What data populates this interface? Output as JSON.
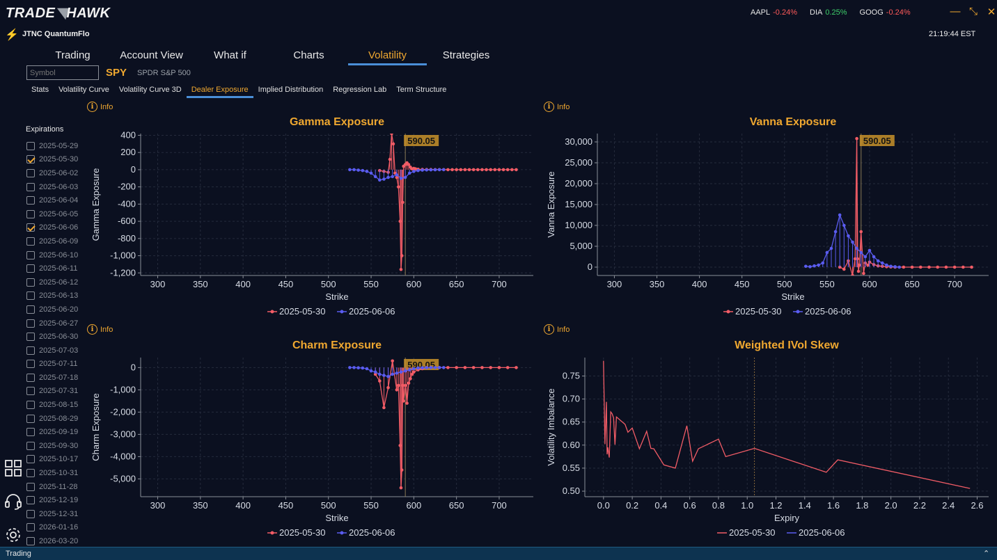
{
  "logo": {
    "left": "TRADE",
    "right": "HAWK"
  },
  "tickers": [
    {
      "symbol": "AAPL",
      "change": "-0.24%",
      "dir": "neg"
    },
    {
      "symbol": "DIA",
      "change": "0.25%",
      "dir": "pos"
    },
    {
      "symbol": "GOOG",
      "change": "-0.24%",
      "dir": "neg"
    }
  ],
  "window": {
    "minimize": "—",
    "restore": "⤡",
    "close": "✕"
  },
  "app_name": "JTNC QuantumFlo",
  "clock": "21:19:44 EST",
  "main_tabs": [
    "Trading",
    "Account View",
    "What if",
    "Charts",
    "Volatility",
    "Strategies"
  ],
  "main_tab_active": 4,
  "symbol": {
    "placeholder": "Symbol",
    "ticker": "SPY",
    "name": "SPDR S&P 500"
  },
  "sub_tabs": [
    "Stats",
    "Volatility Curve",
    "Volatility Curve 3D",
    "Dealer Exposure",
    "Implied Distribution",
    "Regression Lab",
    "Term Structure"
  ],
  "sub_tab_active": 3,
  "expirations": {
    "title": "Expirations",
    "items": [
      {
        "date": "2025-05-29",
        "checked": false
      },
      {
        "date": "2025-05-30",
        "checked": true
      },
      {
        "date": "2025-06-02",
        "checked": false
      },
      {
        "date": "2025-06-03",
        "checked": false
      },
      {
        "date": "2025-06-04",
        "checked": false
      },
      {
        "date": "2025-06-05",
        "checked": false
      },
      {
        "date": "2025-06-06",
        "checked": true
      },
      {
        "date": "2025-06-09",
        "checked": false
      },
      {
        "date": "2025-06-10",
        "checked": false
      },
      {
        "date": "2025-06-11",
        "checked": false
      },
      {
        "date": "2025-06-12",
        "checked": false
      },
      {
        "date": "2025-06-13",
        "checked": false
      },
      {
        "date": "2025-06-20",
        "checked": false
      },
      {
        "date": "2025-06-27",
        "checked": false
      },
      {
        "date": "2025-06-30",
        "checked": false
      },
      {
        "date": "2025-07-03",
        "checked": false
      },
      {
        "date": "2025-07-11",
        "checked": false
      },
      {
        "date": "2025-07-18",
        "checked": false
      },
      {
        "date": "2025-07-31",
        "checked": false
      },
      {
        "date": "2025-08-15",
        "checked": false
      },
      {
        "date": "2025-08-29",
        "checked": false
      },
      {
        "date": "2025-09-19",
        "checked": false
      },
      {
        "date": "2025-09-30",
        "checked": false
      },
      {
        "date": "2025-10-17",
        "checked": false
      },
      {
        "date": "2025-10-31",
        "checked": false
      },
      {
        "date": "2025-11-28",
        "checked": false
      },
      {
        "date": "2025-12-19",
        "checked": false
      },
      {
        "date": "2025-12-31",
        "checked": false
      },
      {
        "date": "2026-01-16",
        "checked": false
      },
      {
        "date": "2026-03-20",
        "checked": false
      }
    ]
  },
  "info_label": "Info",
  "status": {
    "text": "Trading",
    "collapse": "⌃"
  },
  "colors": {
    "accent": "#f0a830",
    "series1": "#f25c66",
    "series2": "#5a5cf0",
    "bg": "#0b1020"
  },
  "chart_data": [
    {
      "type": "line",
      "title": "Gamma Exposure",
      "xlabel": "Strike",
      "ylabel": "Gamma Exposure",
      "xlim": [
        280,
        740
      ],
      "ylim": [
        -1230,
        420
      ],
      "xticks": [
        300,
        350,
        400,
        450,
        500,
        550,
        600,
        650,
        700
      ],
      "yticks": [
        400,
        200,
        0,
        -200,
        -400,
        -600,
        -800,
        -1000,
        -1200
      ],
      "ytick_labels": [
        "400",
        "200",
        "0",
        "-200",
        "-400",
        "-600",
        "-800",
        "-1,000",
        "-1,200"
      ],
      "spot_label": "590.05",
      "spot": 590.05,
      "legend": [
        "2025-05-30",
        "2025-06-06"
      ],
      "series": [
        {
          "name": "2025-05-30",
          "color": "#f25c66",
          "marker": true,
          "x": [
            560,
            565,
            570,
            572,
            574,
            576,
            578,
            580,
            582,
            584,
            585,
            586,
            587,
            588,
            590,
            592,
            594,
            596,
            598,
            600,
            602,
            605,
            610,
            615,
            620,
            625,
            630,
            635,
            640,
            645,
            650,
            655,
            660,
            665,
            670,
            675,
            680,
            685,
            690,
            695,
            700,
            705,
            710,
            715,
            720
          ],
          "y": [
            -10,
            -20,
            -30,
            120,
            420,
            300,
            -40,
            -90,
            -200,
            -600,
            -1160,
            -1000,
            -380,
            40,
            60,
            80,
            60,
            30,
            10,
            15,
            10,
            5,
            3,
            2,
            2,
            1,
            1,
            1,
            0,
            0,
            0,
            0,
            0,
            0,
            0,
            0,
            0,
            0,
            0,
            0,
            0,
            0,
            0,
            0,
            0
          ]
        },
        {
          "name": "2025-06-06",
          "color": "#5a5cf0",
          "marker": true,
          "x": [
            525,
            530,
            535,
            540,
            545,
            550,
            555,
            560,
            565,
            570,
            575,
            580,
            585,
            590,
            595,
            600,
            605,
            610,
            615,
            620,
            625,
            630,
            635
          ],
          "y": [
            0,
            0,
            -5,
            -10,
            -20,
            -40,
            -80,
            -120,
            -110,
            -90,
            -80,
            -60,
            -100,
            -90,
            -40,
            -20,
            -10,
            -5,
            -3,
            -2,
            -1,
            0,
            0
          ]
        }
      ]
    },
    {
      "type": "line",
      "title": "Vanna Exposure",
      "xlabel": "Strike",
      "ylabel": "Vanna Exposure",
      "xlim": [
        280,
        740
      ],
      "ylim": [
        -2000,
        32000
      ],
      "xticks": [
        300,
        350,
        400,
        450,
        500,
        550,
        600,
        650,
        700
      ],
      "yticks": [
        30000,
        25000,
        20000,
        15000,
        10000,
        5000,
        0
      ],
      "ytick_labels": [
        "30,000",
        "25,000",
        "20,000",
        "15,000",
        "10,000",
        "5,000",
        "0"
      ],
      "spot_label": "590.05",
      "spot": 590.05,
      "legend": [
        "2025-05-30",
        "2025-06-06"
      ],
      "series": [
        {
          "name": "2025-05-30",
          "color": "#f25c66",
          "marker": true,
          "x": [
            565,
            570,
            575,
            580,
            583,
            585,
            586,
            587,
            588,
            590,
            593,
            595,
            598,
            600,
            605,
            610,
            615,
            620,
            625,
            630,
            640,
            650,
            660,
            670,
            680,
            690,
            700,
            710,
            720
          ],
          "y": [
            0,
            -500,
            1500,
            -2000,
            2000,
            30800,
            2000,
            -1000,
            500,
            8500,
            -1500,
            1000,
            500,
            1200,
            600,
            300,
            200,
            100,
            50,
            0,
            0,
            0,
            0,
            0,
            0,
            0,
            0,
            0,
            0
          ]
        },
        {
          "name": "2025-06-06",
          "color": "#5a5cf0",
          "marker": true,
          "x": [
            525,
            530,
            535,
            540,
            545,
            550,
            555,
            560,
            565,
            570,
            575,
            580,
            585,
            590,
            595,
            600,
            605,
            610,
            615,
            620,
            625,
            630,
            635
          ],
          "y": [
            200,
            100,
            300,
            500,
            1000,
            3500,
            4500,
            8500,
            12500,
            10000,
            7500,
            6000,
            4500,
            3500,
            2500,
            4000,
            2500,
            1500,
            1000,
            500,
            200,
            100,
            0
          ]
        }
      ]
    },
    {
      "type": "line",
      "title": "Charm Exposure",
      "xlabel": "Strike",
      "ylabel": "Charm Exposure",
      "xlim": [
        280,
        740
      ],
      "ylim": [
        -5800,
        450
      ],
      "xticks": [
        300,
        350,
        400,
        450,
        500,
        550,
        600,
        650,
        700
      ],
      "yticks": [
        0,
        -1000,
        -2000,
        -3000,
        -4000,
        -5000
      ],
      "ytick_labels": [
        "0",
        "-1,000",
        "-2,000",
        "-3,000",
        "-4,000",
        "-5,000"
      ],
      "spot_label": "590.05",
      "spot": 590.05,
      "legend": [
        "2025-05-30",
        "2025-06-06"
      ],
      "series": [
        {
          "name": "2025-05-30",
          "color": "#f25c66",
          "marker": true,
          "x": [
            555,
            560,
            565,
            570,
            575,
            580,
            582,
            584,
            585,
            586,
            587,
            588,
            590,
            592,
            594,
            596,
            598,
            600,
            605,
            610,
            615,
            620,
            630,
            640,
            650,
            660,
            670,
            680,
            690,
            700,
            710,
            720
          ],
          "y": [
            -300,
            -600,
            -1800,
            -900,
            300,
            -1000,
            -800,
            -3500,
            -5400,
            -4600,
            -800,
            -1500,
            -800,
            -1600,
            -700,
            -500,
            -300,
            -200,
            -100,
            -50,
            0,
            0,
            0,
            0,
            0,
            0,
            0,
            0,
            0,
            0,
            0,
            0
          ]
        },
        {
          "name": "2025-06-06",
          "color": "#5a5cf0",
          "marker": true,
          "x": [
            525,
            530,
            535,
            540,
            545,
            550,
            555,
            560,
            565,
            570,
            575,
            580,
            585,
            590,
            595,
            600,
            605,
            610,
            615,
            620,
            625,
            630,
            635
          ],
          "y": [
            0,
            0,
            -10,
            -20,
            -50,
            -150,
            -200,
            -300,
            -350,
            -400,
            -300,
            -250,
            -200,
            -150,
            -100,
            -50,
            -20,
            -10,
            -5,
            0,
            0,
            0,
            0
          ]
        }
      ]
    },
    {
      "type": "line",
      "title": "Weighted IVol Skew",
      "xlabel": "Expiry",
      "ylabel": "Volatility Imbalance",
      "xlim": [
        -0.13,
        2.68
      ],
      "ylim": [
        0.488,
        0.79
      ],
      "xticks": [
        0.0,
        0.2,
        0.4,
        0.6,
        0.8,
        1.0,
        1.2,
        1.4,
        1.6,
        1.8,
        2.0,
        2.2,
        2.4,
        2.6
      ],
      "xtick_labels": [
        "0.0",
        "0.2",
        "0.4",
        "0.6",
        "0.8",
        "1.0",
        "1.2",
        "1.4",
        "1.6",
        "1.8",
        "2.0",
        "2.2",
        "2.4",
        "2.6"
      ],
      "yticks": [
        0.75,
        0.7,
        0.65,
        0.6,
        0.55,
        0.5
      ],
      "ytick_labels": [
        "0.75",
        "0.70",
        "0.65",
        "0.60",
        "0.55",
        "0.50"
      ],
      "vline": 1.05,
      "legend": [
        "2025-05-30",
        "2025-06-06"
      ],
      "series": [
        {
          "name": "2025-05-30",
          "color": "#f25c66",
          "marker": false,
          "x": [
            0.0,
            0.01,
            0.02,
            0.025,
            0.03,
            0.04,
            0.05,
            0.06,
            0.07,
            0.08,
            0.09,
            0.15,
            0.17,
            0.2,
            0.25,
            0.3,
            0.33,
            0.35,
            0.42,
            0.5,
            0.58,
            0.62,
            0.66,
            0.8,
            0.85,
            1.05,
            1.55,
            1.63,
            2.55
          ],
          "y": [
            0.783,
            0.602,
            0.694,
            0.58,
            0.595,
            0.573,
            0.672,
            0.668,
            0.659,
            0.601,
            0.661,
            0.645,
            0.628,
            0.637,
            0.592,
            0.63,
            0.593,
            0.592,
            0.557,
            0.55,
            0.642,
            0.565,
            0.592,
            0.613,
            0.575,
            0.593,
            0.541,
            0.568,
            0.506
          ]
        },
        {
          "name": "2025-06-06",
          "color": "#5a5cf0",
          "marker": false,
          "x": [],
          "y": []
        }
      ]
    }
  ]
}
